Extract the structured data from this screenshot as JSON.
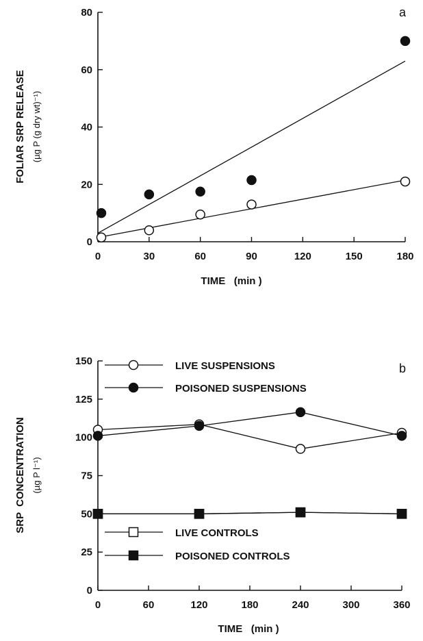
{
  "chart_data": [
    {
      "type": "scatter",
      "panel_label": "a",
      "xlabel": "TIME   (min )",
      "ylabel": "FOLIAR SRP RELEASE",
      "ylabel_unit": "(µg P (g dry wt)⁻¹)",
      "xlim": [
        0,
        180
      ],
      "ylim": [
        0,
        80
      ],
      "xticks": [
        0,
        30,
        60,
        90,
        120,
        150,
        180
      ],
      "yticks": [
        0,
        20,
        40,
        60,
        80
      ],
      "series": [
        {
          "marker": "filled-circle",
          "points": [
            [
              2,
              10
            ],
            [
              30,
              16.5
            ],
            [
              60,
              17.5
            ],
            [
              90,
              21.5
            ],
            [
              180,
              70
            ]
          ],
          "fit": [
            [
              0,
              3
            ],
            [
              180,
              63
            ]
          ]
        },
        {
          "marker": "open-circle",
          "points": [
            [
              2,
              1.5
            ],
            [
              30,
              4
            ],
            [
              60,
              9.5
            ],
            [
              90,
              13
            ],
            [
              180,
              21
            ]
          ],
          "fit": [
            [
              0,
              1.5
            ],
            [
              180,
              21.5
            ]
          ]
        }
      ]
    },
    {
      "type": "line",
      "panel_label": "b",
      "xlabel": "TIME   (min )",
      "ylabel": "SRP  CONCENTRATION",
      "ylabel_unit": "(µg P l⁻¹)",
      "xlim": [
        0,
        360
      ],
      "ylim": [
        0,
        150
      ],
      "xticks": [
        0,
        60,
        120,
        180,
        240,
        300,
        360
      ],
      "yticks": [
        0,
        25,
        50,
        75,
        100,
        125,
        150
      ],
      "series": [
        {
          "name": "LIVE SUSPENSIONS",
          "marker": "open-circle",
          "x": [
            0,
            120,
            240,
            360
          ],
          "y": [
            105,
            108.5,
            92.5,
            103
          ]
        },
        {
          "name": "POISONED SUSPENSIONS",
          "marker": "filled-circle",
          "x": [
            0,
            120,
            240,
            360
          ],
          "y": [
            101,
            107.5,
            116.5,
            101
          ]
        },
        {
          "name": "LIVE CONTROLS",
          "marker": "open-square",
          "x": [
            0,
            120,
            240,
            360
          ],
          "y": [
            50,
            50,
            51,
            50
          ]
        },
        {
          "name": "POISONED CONTROLS",
          "marker": "filled-square",
          "x": [
            0,
            120,
            240,
            360
          ],
          "y": [
            50,
            50,
            51,
            50
          ]
        }
      ]
    }
  ]
}
